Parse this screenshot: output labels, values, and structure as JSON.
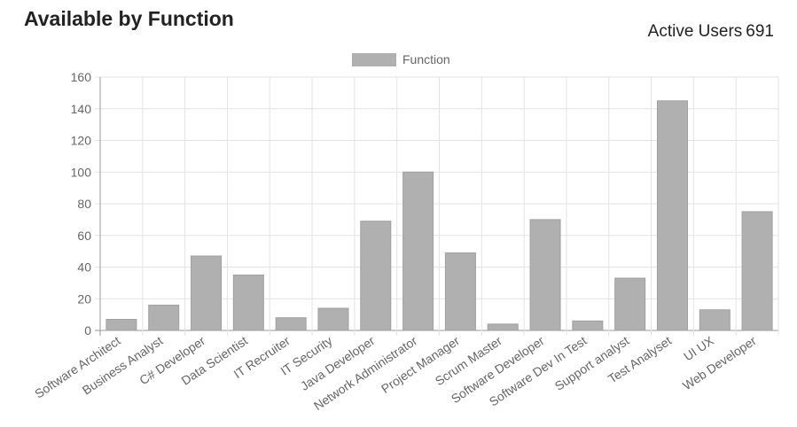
{
  "header": {
    "title": "Available by Function",
    "active_users_label": "Active Users",
    "active_users_value": "691"
  },
  "chart_data": {
    "type": "bar",
    "legend": {
      "label": "Function",
      "position": "top-center"
    },
    "categories": [
      "Software Architect",
      "Business Analyst",
      "C# Developer",
      "Data Scientist",
      "IT Recruiter",
      "IT Security",
      "Java Developer",
      "Network Administrator",
      "Project Manager",
      "Scrum Master",
      "Software Developer",
      "Software Dev In Test",
      "Support analyst",
      "Test Analyset",
      "UI UX",
      "Web Developer"
    ],
    "series": [
      {
        "name": "Function",
        "values": [
          7,
          16,
          47,
          35,
          8,
          14,
          69,
          100,
          49,
          4,
          70,
          6,
          33,
          145,
          13,
          75
        ]
      }
    ],
    "ylim": [
      0,
      160
    ],
    "yticks": [
      0,
      20,
      40,
      60,
      80,
      100,
      120,
      140,
      160
    ],
    "grid": true,
    "colors": {
      "bar": "#b0b0b0",
      "bar_border": "#a0a0a0",
      "grid": "#e3e3e3",
      "axis_text": "#666666"
    }
  }
}
